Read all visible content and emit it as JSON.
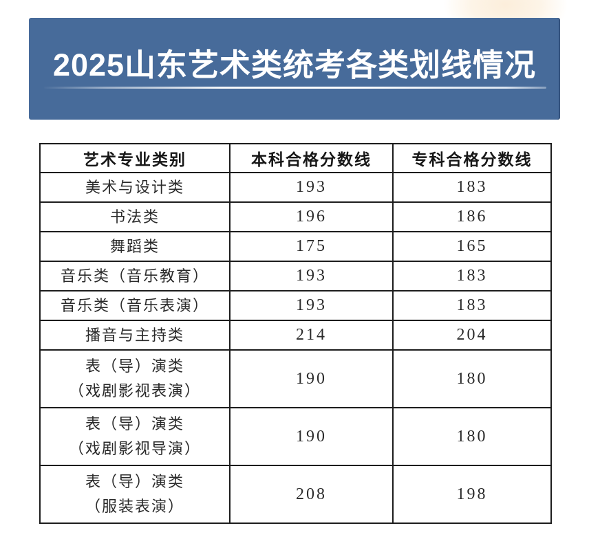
{
  "page": {
    "background_color": "#ffffff",
    "top_glow_color": "#fdf2e2"
  },
  "banner": {
    "title": "2025山东艺术类统考各类划线情况",
    "background_color": "#476b9a",
    "text_color": "#ffffff",
    "divider_color": "#ffffff"
  },
  "table": {
    "border_color": "#1c1c1c",
    "headers": {
      "category": "艺术专业类别",
      "undergraduate": "本科合格分数线",
      "college": "专科合格分数线"
    },
    "rows": [
      {
        "category_lines": [
          "美术与设计类"
        ],
        "undergraduate": "193",
        "college": "183"
      },
      {
        "category_lines": [
          "书法类"
        ],
        "undergraduate": "196",
        "college": "186"
      },
      {
        "category_lines": [
          "舞蹈类"
        ],
        "undergraduate": "175",
        "college": "165"
      },
      {
        "category_lines": [
          "音乐类（音乐教育）"
        ],
        "undergraduate": "193",
        "college": "183"
      },
      {
        "category_lines": [
          "音乐类（音乐表演）"
        ],
        "undergraduate": "193",
        "college": "183"
      },
      {
        "category_lines": [
          "播音与主持类"
        ],
        "undergraduate": "214",
        "college": "204"
      },
      {
        "category_lines": [
          "表（导）演类",
          "（戏剧影视表演）"
        ],
        "undergraduate": "190",
        "college": "180"
      },
      {
        "category_lines": [
          "表（导）演类",
          "（戏剧影视导演）"
        ],
        "undergraduate": "190",
        "college": "180"
      },
      {
        "category_lines": [
          "表（导）演类",
          "（服装表演）"
        ],
        "undergraduate": "208",
        "college": "198"
      }
    ]
  }
}
